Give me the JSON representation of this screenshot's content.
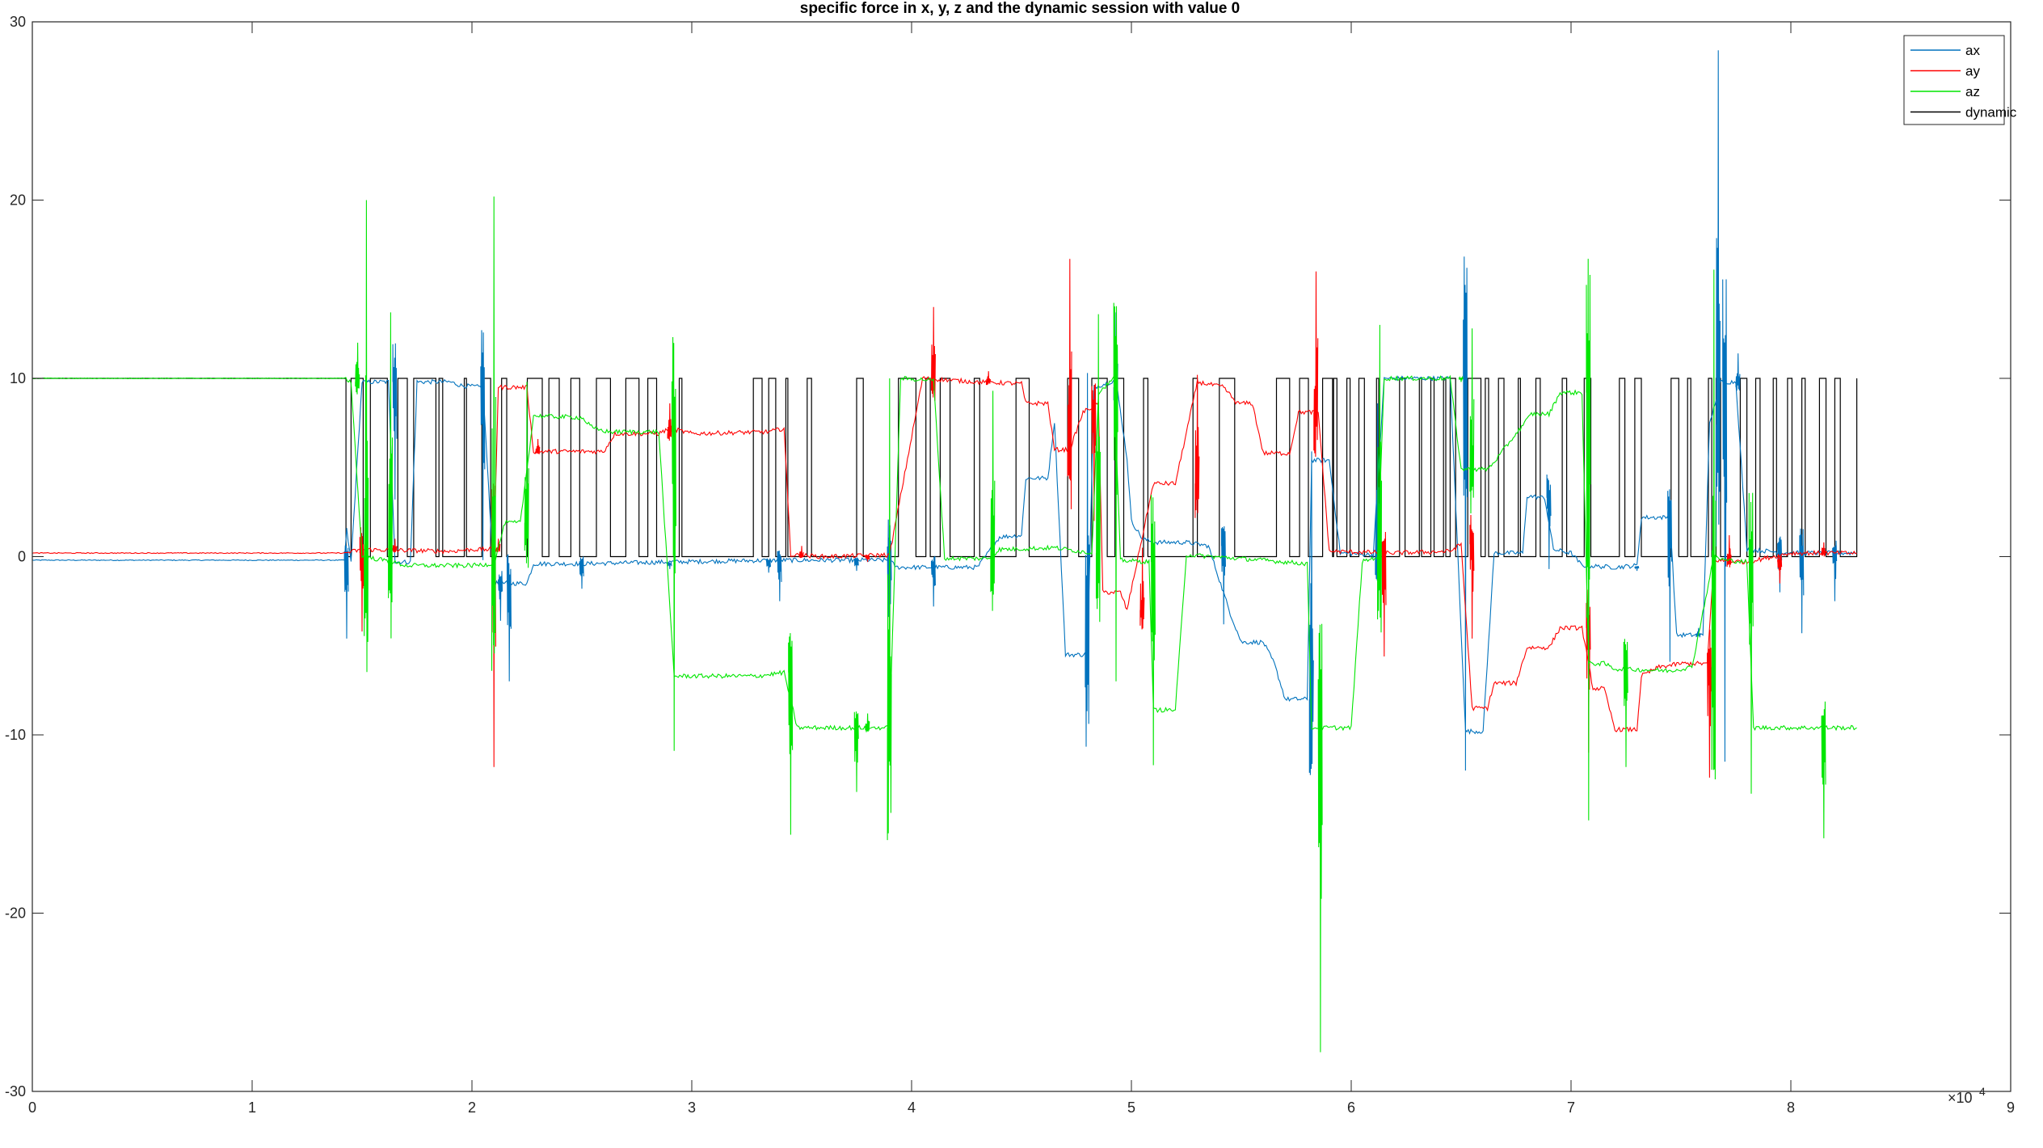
{
  "chart_data": {
    "type": "line",
    "title": "specific force in x, y, z and the dynamic session with value 0",
    "xlabel": "",
    "ylabel": "",
    "x_exponent_label": "×10",
    "x_exponent_power": "4",
    "xlim": [
      0,
      9
    ],
    "ylim": [
      -30,
      30
    ],
    "xticks": [
      0,
      1,
      2,
      3,
      4,
      5,
      6,
      7,
      8,
      9
    ],
    "yticks": [
      -30,
      -20,
      -10,
      0,
      10,
      20,
      30
    ],
    "xtick_labels": [
      "0",
      "1",
      "2",
      "3",
      "4",
      "5",
      "6",
      "7",
      "8",
      "9"
    ],
    "ytick_labels": [
      "-30",
      "-20",
      "-10",
      "0",
      "10",
      "20",
      "30"
    ],
    "grid": false,
    "legend_position": "top-right",
    "series": [
      {
        "name": "ax",
        "color": "#0072BD",
        "points": [
          [
            0,
            -0.2
          ],
          [
            1.42,
            -0.2
          ],
          [
            1.43,
            1.5
          ],
          [
            1.45,
            -0.3
          ],
          [
            1.5,
            9.8
          ],
          [
            1.62,
            9.8
          ],
          [
            1.65,
            -0.3
          ],
          [
            1.72,
            -0.3
          ],
          [
            1.75,
            9.8
          ],
          [
            1.9,
            9.8
          ],
          [
            1.95,
            9.6
          ],
          [
            2.05,
            9.5
          ],
          [
            2.1,
            -1.5
          ],
          [
            2.25,
            -1.5
          ],
          [
            2.28,
            -0.4
          ],
          [
            2.5,
            -0.4
          ],
          [
            2.9,
            -0.3
          ],
          [
            3.4,
            -0.2
          ],
          [
            3.9,
            -0.2
          ],
          [
            3.93,
            -0.6
          ],
          [
            4.3,
            -0.6
          ],
          [
            4.4,
            1.1
          ],
          [
            4.5,
            1.2
          ],
          [
            4.52,
            4.4
          ],
          [
            4.62,
            4.4
          ],
          [
            4.65,
            7.6
          ],
          [
            4.7,
            -5.5
          ],
          [
            4.8,
            -5.5
          ],
          [
            4.83,
            9.5
          ],
          [
            4.93,
            9.9
          ],
          [
            4.98,
            5.5
          ],
          [
            5.0,
            2.0
          ],
          [
            5.05,
            1.0
          ],
          [
            5.1,
            0.8
          ],
          [
            5.25,
            0.8
          ],
          [
            5.35,
            0.6
          ],
          [
            5.45,
            -3.2
          ],
          [
            5.5,
            -4.8
          ],
          [
            5.6,
            -4.8
          ],
          [
            5.65,
            -6.0
          ],
          [
            5.7,
            -8.0
          ],
          [
            5.8,
            -8.0
          ],
          [
            5.82,
            5.4
          ],
          [
            5.9,
            5.4
          ],
          [
            5.95,
            0.2
          ],
          [
            6.1,
            0.1
          ],
          [
            6.15,
            10.0
          ],
          [
            6.45,
            10.0
          ],
          [
            6.52,
            -9.8
          ],
          [
            6.6,
            -9.8
          ],
          [
            6.65,
            0.2
          ],
          [
            6.78,
            0.2
          ],
          [
            6.8,
            3.4
          ],
          [
            6.88,
            3.3
          ],
          [
            6.92,
            0.4
          ],
          [
            7.0,
            0.2
          ],
          [
            7.05,
            -0.5
          ],
          [
            7.2,
            -0.6
          ],
          [
            7.3,
            -0.5
          ],
          [
            7.32,
            2.2
          ],
          [
            7.45,
            2.2
          ],
          [
            7.48,
            -4.4
          ],
          [
            7.6,
            -4.4
          ],
          [
            7.63,
            7.4
          ],
          [
            7.68,
            9.8
          ],
          [
            7.75,
            9.8
          ],
          [
            7.8,
            0.4
          ],
          [
            8.0,
            0.2
          ],
          [
            8.3,
            0.2
          ]
        ]
      },
      {
        "name": "ay",
        "color": "#FF0000",
        "points": [
          [
            0,
            0.2
          ],
          [
            1.42,
            0.2
          ],
          [
            1.5,
            0.4
          ],
          [
            1.9,
            0.3
          ],
          [
            2.0,
            0.4
          ],
          [
            2.1,
            0.4
          ],
          [
            2.12,
            9.5
          ],
          [
            2.25,
            9.5
          ],
          [
            2.28,
            5.9
          ],
          [
            2.6,
            5.9
          ],
          [
            2.65,
            6.9
          ],
          [
            2.85,
            6.9
          ],
          [
            2.9,
            7.2
          ],
          [
            3.0,
            6.9
          ],
          [
            3.35,
            7.0
          ],
          [
            3.42,
            7.2
          ],
          [
            3.45,
            0.1
          ],
          [
            3.6,
            0.0
          ],
          [
            3.9,
            0.1
          ],
          [
            4.05,
            10.0
          ],
          [
            4.3,
            9.8
          ],
          [
            4.5,
            9.7
          ],
          [
            4.52,
            8.6
          ],
          [
            4.62,
            8.6
          ],
          [
            4.65,
            6.0
          ],
          [
            4.72,
            6.0
          ],
          [
            4.78,
            8.1
          ],
          [
            4.85,
            8.6
          ],
          [
            4.87,
            -2.0
          ],
          [
            4.95,
            -2.0
          ],
          [
            4.98,
            -3.0
          ],
          [
            5.1,
            4.1
          ],
          [
            5.2,
            4.1
          ],
          [
            5.3,
            9.8
          ],
          [
            5.42,
            9.5
          ],
          [
            5.48,
            8.6
          ],
          [
            5.55,
            8.6
          ],
          [
            5.6,
            5.8
          ],
          [
            5.72,
            5.8
          ],
          [
            5.76,
            8.1
          ],
          [
            5.85,
            8.1
          ],
          [
            5.9,
            0.3
          ],
          [
            6.2,
            0.2
          ],
          [
            6.45,
            0.3
          ],
          [
            6.5,
            0.7
          ],
          [
            6.55,
            -8.5
          ],
          [
            6.62,
            -8.5
          ],
          [
            6.65,
            -7.1
          ],
          [
            6.75,
            -7.1
          ],
          [
            6.8,
            -5.1
          ],
          [
            6.9,
            -5.1
          ],
          [
            6.95,
            -4.0
          ],
          [
            7.05,
            -4.0
          ],
          [
            7.1,
            -7.4
          ],
          [
            7.15,
            -7.4
          ],
          [
            7.2,
            -9.7
          ],
          [
            7.3,
            -9.7
          ],
          [
            7.32,
            -6.7
          ],
          [
            7.4,
            -6.2
          ],
          [
            7.5,
            -6.0
          ],
          [
            7.62,
            -6.0
          ],
          [
            7.65,
            -0.2
          ],
          [
            7.8,
            -0.3
          ],
          [
            8.0,
            0.2
          ],
          [
            8.3,
            0.2
          ]
        ]
      },
      {
        "name": "az",
        "color": "#00E600",
        "points": [
          [
            0,
            10.0
          ],
          [
            1.42,
            10.0
          ],
          [
            1.45,
            9.8
          ],
          [
            1.5,
            0.0
          ],
          [
            1.6,
            -0.2
          ],
          [
            1.7,
            -0.5
          ],
          [
            1.88,
            -0.5
          ],
          [
            1.92,
            -0.5
          ],
          [
            2.0,
            -0.5
          ],
          [
            2.1,
            -0.4
          ],
          [
            2.15,
            1.9
          ],
          [
            2.22,
            1.9
          ],
          [
            2.28,
            7.9
          ],
          [
            2.5,
            7.8
          ],
          [
            2.55,
            7.2
          ],
          [
            2.62,
            7.0
          ],
          [
            2.85,
            7.0
          ],
          [
            2.92,
            -6.7
          ],
          [
            3.3,
            -6.7
          ],
          [
            3.42,
            -6.5
          ],
          [
            3.48,
            -9.6
          ],
          [
            3.9,
            -9.6
          ],
          [
            3.95,
            10.0
          ],
          [
            4.1,
            9.9
          ],
          [
            4.15,
            -0.1
          ],
          [
            4.35,
            -0.1
          ],
          [
            4.4,
            0.4
          ],
          [
            4.65,
            0.5
          ],
          [
            4.82,
            0.2
          ],
          [
            4.85,
            9.2
          ],
          [
            4.92,
            10.0
          ],
          [
            4.95,
            -0.2
          ],
          [
            5.08,
            -0.3
          ],
          [
            5.1,
            -8.6
          ],
          [
            5.2,
            -8.6
          ],
          [
            5.25,
            0.1
          ],
          [
            5.6,
            -0.2
          ],
          [
            5.8,
            -0.4
          ],
          [
            5.82,
            -9.6
          ],
          [
            6.0,
            -9.6
          ],
          [
            6.05,
            -0.3
          ],
          [
            6.12,
            0.0
          ],
          [
            6.15,
            10.0
          ],
          [
            6.45,
            10.0
          ],
          [
            6.5,
            4.9
          ],
          [
            6.62,
            4.9
          ],
          [
            6.65,
            5.3
          ],
          [
            6.75,
            6.9
          ],
          [
            6.82,
            8.0
          ],
          [
            6.9,
            8.0
          ],
          [
            6.95,
            9.2
          ],
          [
            7.05,
            9.2
          ],
          [
            7.08,
            -6.0
          ],
          [
            7.15,
            -6.0
          ],
          [
            7.2,
            -6.3
          ],
          [
            7.45,
            -6.4
          ],
          [
            7.55,
            -6.2
          ],
          [
            7.65,
            0.0
          ],
          [
            7.7,
            -0.2
          ],
          [
            7.8,
            -0.3
          ],
          [
            7.83,
            -9.6
          ],
          [
            8.3,
            -9.6
          ]
        ]
      },
      {
        "name": "dynamic",
        "color": "#000000",
        "transitions": [
          1.427,
          1.45,
          1.505,
          1.538,
          1.615,
          1.663,
          1.706,
          1.735,
          1.836,
          1.85,
          1.867,
          1.965,
          1.975,
          2.045,
          2.085,
          2.135,
          2.158,
          2.252,
          2.32,
          2.35,
          2.397,
          2.45,
          2.49,
          2.566,
          2.63,
          2.7,
          2.76,
          2.8,
          2.84,
          2.943,
          2.955,
          3.28,
          3.32,
          3.35,
          3.382,
          3.428,
          3.437,
          3.525,
          3.545,
          3.75,
          3.78,
          3.94,
          4.02,
          4.065,
          4.085,
          4.13,
          4.175,
          4.285,
          4.31,
          4.475,
          4.535,
          4.71,
          4.76,
          4.82,
          4.89,
          4.925,
          4.965,
          5.055,
          5.075,
          5.28,
          5.3,
          5.4,
          5.47,
          5.66,
          5.72,
          5.765,
          5.805,
          5.87,
          5.915,
          5.92,
          5.935,
          5.98,
          5.995,
          6.035,
          6.06,
          6.115,
          6.125,
          6.22,
          6.245,
          6.31,
          6.32,
          6.362,
          6.377,
          6.42,
          6.43,
          6.45,
          6.475,
          6.53,
          6.59,
          6.61,
          6.625,
          6.67,
          6.695,
          6.76,
          6.77,
          6.84,
          6.86,
          6.96,
          6.98,
          7.06,
          7.09,
          7.22,
          7.245,
          7.29,
          7.32,
          7.455,
          7.49,
          7.53,
          7.545,
          7.625,
          7.64,
          7.66,
          7.68,
          7.77,
          7.8,
          7.84,
          7.86,
          7.92,
          7.935,
          7.985,
          8.005,
          8.05,
          8.065,
          8.13,
          8.16,
          8.2,
          8.225,
          8.3
        ],
        "x_end": 8.3
      }
    ]
  },
  "spikes": {
    "ax": [
      [
        1.43,
        -4.6
      ],
      [
        1.65,
        3.2
      ],
      [
        2.05,
        -0.2
      ],
      [
        2.13,
        -3.6
      ],
      [
        2.17,
        -7.0
      ],
      [
        2.5,
        -1.8
      ],
      [
        2.9,
        -0.7
      ],
      [
        3.35,
        -0.9
      ],
      [
        3.4,
        -2.5
      ],
      [
        3.75,
        -0.8
      ],
      [
        3.9,
        -7.4
      ],
      [
        4.1,
        -2.8
      ],
      [
        4.8,
        10.3
      ],
      [
        4.93,
        13.7
      ],
      [
        5.42,
        -3.8
      ],
      [
        5.82,
        5.9
      ],
      [
        6.12,
        8.6
      ],
      [
        6.52,
        -12.0
      ],
      [
        6.9,
        -0.7
      ],
      [
        7.3,
        -0.8
      ],
      [
        7.45,
        -5.9
      ],
      [
        7.58,
        -4.0
      ],
      [
        7.67,
        28.4
      ],
      [
        7.7,
        -11.5
      ],
      [
        7.76,
        11.4
      ],
      [
        7.95,
        -2.0
      ],
      [
        8.05,
        -4.3
      ],
      [
        8.2,
        -2.5
      ]
    ],
    "ay": [
      [
        1.5,
        -4.2
      ],
      [
        1.65,
        1.0
      ],
      [
        2.1,
        -11.8
      ],
      [
        2.12,
        1.0
      ],
      [
        2.3,
        6.6
      ],
      [
        2.9,
        8.6
      ],
      [
        3.5,
        0.6
      ],
      [
        3.8,
        -0.3
      ],
      [
        4.1,
        14.0
      ],
      [
        4.35,
        10.4
      ],
      [
        4.72,
        16.7
      ],
      [
        4.83,
        2.0
      ],
      [
        5.05,
        0.5
      ],
      [
        5.3,
        10.2
      ],
      [
        5.84,
        16.0
      ],
      [
        6.15,
        -5.6
      ],
      [
        6.55,
        -4.6
      ],
      [
        7.08,
        -11.0
      ],
      [
        7.63,
        -12.4
      ],
      [
        7.72,
        1.2
      ],
      [
        7.95,
        -1.5
      ],
      [
        8.15,
        0.8
      ]
    ],
    "az": [
      [
        1.48,
        12.0
      ],
      [
        1.52,
        20.0
      ],
      [
        1.63,
        13.7
      ],
      [
        2.1,
        20.2
      ],
      [
        2.25,
        9.8
      ],
      [
        2.92,
        -10.9
      ],
      [
        3.45,
        -15.6
      ],
      [
        3.75,
        -13.2
      ],
      [
        3.8,
        -8.8
      ],
      [
        3.9,
        10.0
      ],
      [
        4.37,
        9.3
      ],
      [
        4.85,
        13.6
      ],
      [
        4.93,
        -7.0
      ],
      [
        5.1,
        -11.7
      ],
      [
        5.86,
        -27.8
      ],
      [
        6.13,
        13.0
      ],
      [
        6.5,
        9.8
      ],
      [
        6.55,
        12.8
      ],
      [
        7.08,
        -14.8
      ],
      [
        7.25,
        -11.8
      ],
      [
        7.65,
        16.1
      ],
      [
        7.82,
        -13.3
      ],
      [
        8.15,
        -15.8
      ]
    ]
  }
}
